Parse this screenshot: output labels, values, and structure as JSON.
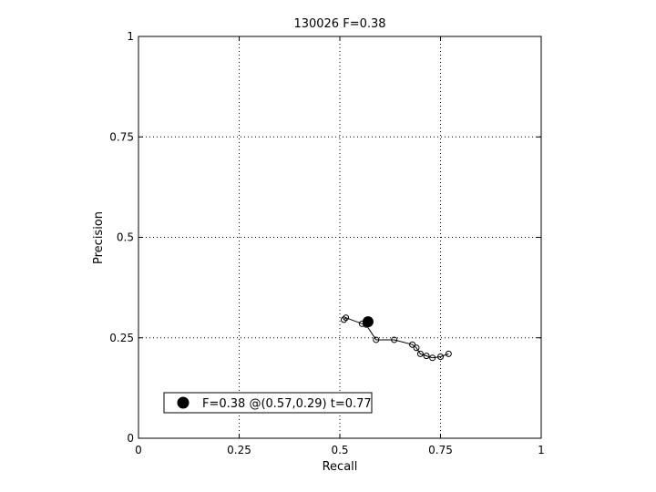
{
  "chart_data": {
    "type": "scatter",
    "title": "130026 F=0.38",
    "xlabel": "Recall",
    "ylabel": "Precision",
    "xlim": [
      0,
      1
    ],
    "ylim": [
      0,
      1
    ],
    "grid": true,
    "x_ticks": [
      0,
      0.25,
      0.5,
      0.75,
      1
    ],
    "y_ticks": [
      0,
      0.25,
      0.5,
      0.75,
      1
    ],
    "x_tick_labels": [
      "0",
      "0.25",
      "0.5",
      "0.75",
      "1"
    ],
    "y_tick_labels": [
      "0",
      "0.25",
      "0.5",
      "0.75",
      "1"
    ],
    "series": [
      {
        "x": [
          0.51,
          0.515,
          0.555,
          0.565,
          0.59,
          0.635,
          0.68,
          0.69,
          0.7,
          0.715,
          0.73,
          0.75,
          0.77
        ],
        "y": [
          0.295,
          0.3,
          0.285,
          0.283,
          0.245,
          0.245,
          0.233,
          0.225,
          0.21,
          0.205,
          0.2,
          0.203,
          0.21
        ]
      }
    ],
    "best_point": {
      "x": 0.57,
      "y": 0.29
    },
    "legend": {
      "position": "bottom-left",
      "label": "F=0.38 @(0.57,0.29) t=0.77"
    }
  }
}
